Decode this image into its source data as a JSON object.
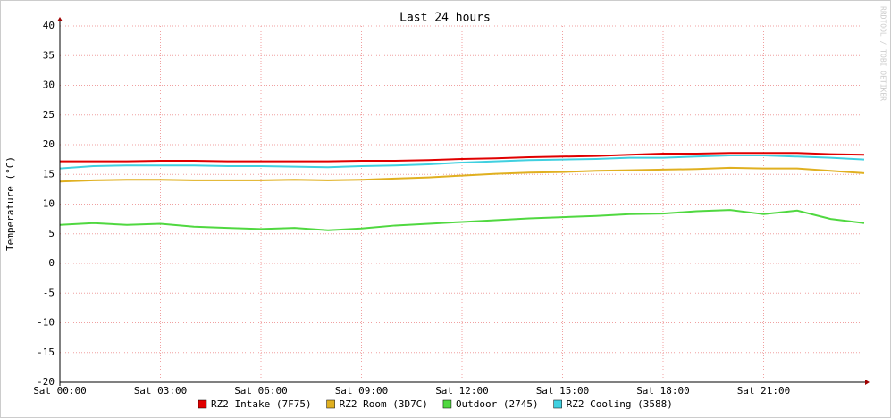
{
  "chart_data": {
    "type": "line",
    "title": "Last 24 hours",
    "y_label": "Temperature (°C)",
    "watermark": "RRDTOOL / TOBI OETIKER",
    "x": [
      0,
      1,
      2,
      3,
      4,
      5,
      6,
      7,
      8,
      9,
      10,
      11,
      12,
      13,
      14,
      15,
      16,
      17,
      18,
      19,
      20,
      21,
      22,
      23,
      24
    ],
    "xlim": [
      0,
      24
    ],
    "xticks": [
      {
        "value": 0,
        "label": "Sat 00:00"
      },
      {
        "value": 3,
        "label": "Sat 03:00"
      },
      {
        "value": 6,
        "label": "Sat 06:00"
      },
      {
        "value": 9,
        "label": "Sat 09:00"
      },
      {
        "value": 12,
        "label": "Sat 12:00"
      },
      {
        "value": 15,
        "label": "Sat 15:00"
      },
      {
        "value": 18,
        "label": "Sat 18:00"
      },
      {
        "value": 21,
        "label": "Sat 21:00"
      }
    ],
    "ylim": [
      -20,
      40
    ],
    "yticks": [
      -20,
      -15,
      -10,
      -5,
      0,
      5,
      10,
      15,
      20,
      25,
      30,
      35,
      40
    ],
    "grid": true,
    "series": [
      {
        "name": "RZ2 Intake (7F75)",
        "color": "#e00000",
        "values": [
          17.2,
          17.2,
          17.2,
          17.3,
          17.3,
          17.2,
          17.2,
          17.2,
          17.2,
          17.3,
          17.3,
          17.4,
          17.6,
          17.7,
          17.9,
          18.0,
          18.1,
          18.3,
          18.5,
          18.5,
          18.6,
          18.6,
          18.6,
          18.4,
          18.3
        ]
      },
      {
        "name": "RZ2 Room (3D7C)",
        "color": "#e0b020",
        "values": [
          13.8,
          14.0,
          14.1,
          14.1,
          14.0,
          14.0,
          14.0,
          14.1,
          14.0,
          14.1,
          14.3,
          14.5,
          14.8,
          15.1,
          15.3,
          15.4,
          15.6,
          15.7,
          15.8,
          15.9,
          16.1,
          16.0,
          16.0,
          15.6,
          15.2
        ]
      },
      {
        "name": "Outdoor (2745)",
        "color": "#50d840",
        "values": [
          6.5,
          6.8,
          6.5,
          6.7,
          6.2,
          6.0,
          5.8,
          6.0,
          5.6,
          5.9,
          6.4,
          6.7,
          7.0,
          7.3,
          7.6,
          7.8,
          8.0,
          8.3,
          8.4,
          8.8,
          9.0,
          8.3,
          8.9,
          7.5,
          6.8
        ]
      },
      {
        "name": "RZ2 Cooling (3588)",
        "color": "#40d0e0",
        "values": [
          16.0,
          16.4,
          16.5,
          16.5,
          16.5,
          16.4,
          16.4,
          16.3,
          16.2,
          16.4,
          16.5,
          16.7,
          17.0,
          17.2,
          17.4,
          17.5,
          17.6,
          17.8,
          17.8,
          18.0,
          18.2,
          18.2,
          18.0,
          17.8,
          17.5
        ]
      }
    ]
  }
}
